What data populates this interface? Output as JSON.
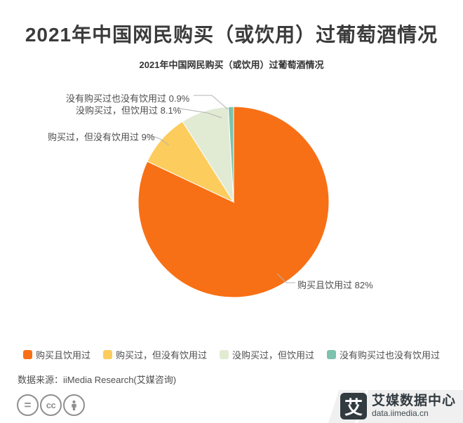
{
  "header": {
    "title": "2021年中国网民购买（或饮用）过葡萄酒情况",
    "subtitle": "2021年中国网民购买（或饮用）过葡萄酒情况"
  },
  "chart_data": {
    "type": "pie",
    "title": "2021年中国网民购买（或饮用）过葡萄酒情况",
    "unit": "%",
    "start_angle": "12-o-clock",
    "direction": "clockwise",
    "legend_position": "bottom",
    "slices": [
      {
        "name": "购买且饮用过",
        "value": 82,
        "display": "82%",
        "color": "#F87015",
        "callout": "购买且饮用过 82%"
      },
      {
        "name": "购买过，但没有饮用过",
        "value": 9,
        "display": "9%",
        "color": "#FCCC5C",
        "callout": "购买过，但没有饮用过 9%"
      },
      {
        "name": "没购买过，但饮用过",
        "value": 8.1,
        "display": "8.1%",
        "color": "#E1EBD3",
        "callout": "没购买过，但饮用过 8.1%"
      },
      {
        "name": "没有购买过也没有饮用过",
        "value": 0.9,
        "display": "0.9%",
        "color": "#7CC2AD",
        "callout": "没有购买过也没有饮用过 0.9%"
      }
    ]
  },
  "footer": {
    "source": "数据来源：iiMedia Research(艾媒咨询)",
    "license_icons": [
      "equals-icon",
      "cc-icon",
      "person-icon"
    ],
    "license_equals_glyph": "=",
    "license_cc_glyph": "cc",
    "brand": {
      "logo_char": "艾",
      "name": "艾媒数据中心",
      "site": "data.iimedia.cn"
    }
  }
}
